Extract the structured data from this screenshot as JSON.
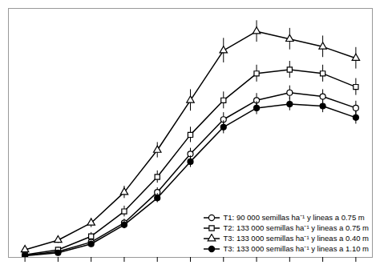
{
  "chart_data": {
    "type": "line",
    "x": [
      1,
      2,
      3,
      4,
      5,
      6,
      7,
      8,
      9,
      10,
      11
    ],
    "series": [
      {
        "name": "T1: 90 000 semillas ha⁻¹ y lineas a 0.75 m",
        "color": "black",
        "marker": "circle_open",
        "values": [
          0.05,
          0.15,
          0.4,
          0.9,
          1.7,
          2.7,
          3.6,
          4.1,
          4.3,
          4.2,
          3.9
        ],
        "errors": [
          0.04,
          0.06,
          0.08,
          0.1,
          0.12,
          0.15,
          0.18,
          0.18,
          0.18,
          0.18,
          0.18
        ]
      },
      {
        "name": "T2: 133 000 semillas ha⁻¹ y lineas a 0.75 m",
        "color": "black",
        "marker": "square_open",
        "values": [
          0.07,
          0.2,
          0.55,
          1.2,
          2.1,
          3.2,
          4.1,
          4.8,
          4.9,
          4.8,
          4.45
        ],
        "errors": [
          0.04,
          0.07,
          0.1,
          0.14,
          0.16,
          0.2,
          0.22,
          0.22,
          0.22,
          0.22,
          0.22
        ]
      },
      {
        "name": "T3: 133 000 semillas ha⁻¹ y lineas a 0.40 m",
        "color": "black",
        "marker": "triangle_open",
        "values": [
          0.2,
          0.45,
          0.9,
          1.7,
          2.8,
          4.1,
          5.4,
          5.9,
          5.7,
          5.5,
          5.2
        ],
        "errors": [
          0.04,
          0.08,
          0.12,
          0.16,
          0.2,
          0.28,
          0.32,
          0.28,
          0.28,
          0.28,
          0.28
        ]
      },
      {
        "name": "T3: 133 000 semillas ha⁻¹ y lineas a 1.10 m",
        "color": "black",
        "marker": "circle",
        "values": [
          0.04,
          0.12,
          0.35,
          0.85,
          1.55,
          2.5,
          3.4,
          3.9,
          4.0,
          3.95,
          3.65
        ],
        "errors": [
          0.03,
          0.05,
          0.08,
          0.1,
          0.12,
          0.15,
          0.17,
          0.17,
          0.17,
          0.17,
          0.17
        ]
      }
    ],
    "xlim": [
      0.5,
      11.5
    ],
    "ylim": [
      0,
      6.5
    ],
    "xticks": [
      1,
      2,
      3,
      4,
      5,
      6,
      7,
      8,
      9,
      10,
      11
    ],
    "tick_labels": false,
    "grid": false,
    "legend": "lower right"
  }
}
